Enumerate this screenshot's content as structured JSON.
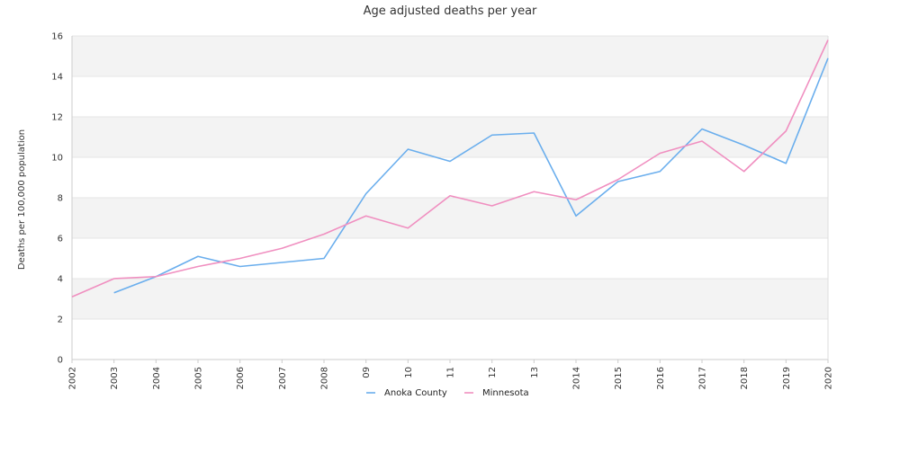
{
  "chart_data": {
    "type": "line",
    "title": "Age adjusted deaths per year",
    "xlabel": "",
    "ylabel": "Deaths per 100,000 population",
    "categories": [
      "2002",
      "2003",
      "2004",
      "2005",
      "2006",
      "2007",
      "2008",
      "09",
      "10",
      "11",
      "12",
      "13",
      "2014",
      "2015",
      "2016",
      "2017",
      "2018",
      "2019",
      "2020"
    ],
    "ylim": [
      0,
      16
    ],
    "yticks": [
      0,
      2,
      4,
      6,
      8,
      10,
      12,
      14,
      16
    ],
    "grid": "horizontal bands",
    "legend_position": "bottom-center",
    "series": [
      {
        "name": "Anoka County",
        "color": "#6aaeed",
        "values": [
          null,
          3.3,
          4.1,
          5.1,
          4.6,
          4.8,
          5.0,
          8.2,
          10.4,
          9.8,
          11.1,
          11.2,
          7.1,
          8.8,
          9.3,
          11.4,
          10.6,
          9.7,
          14.9
        ]
      },
      {
        "name": "Minnesota",
        "color": "#f08fc0",
        "values": [
          3.1,
          4.0,
          4.1,
          4.6,
          5.0,
          5.5,
          6.2,
          7.1,
          6.5,
          8.1,
          7.6,
          8.3,
          7.9,
          8.9,
          10.2,
          10.8,
          9.3,
          11.3,
          15.8
        ]
      }
    ]
  }
}
